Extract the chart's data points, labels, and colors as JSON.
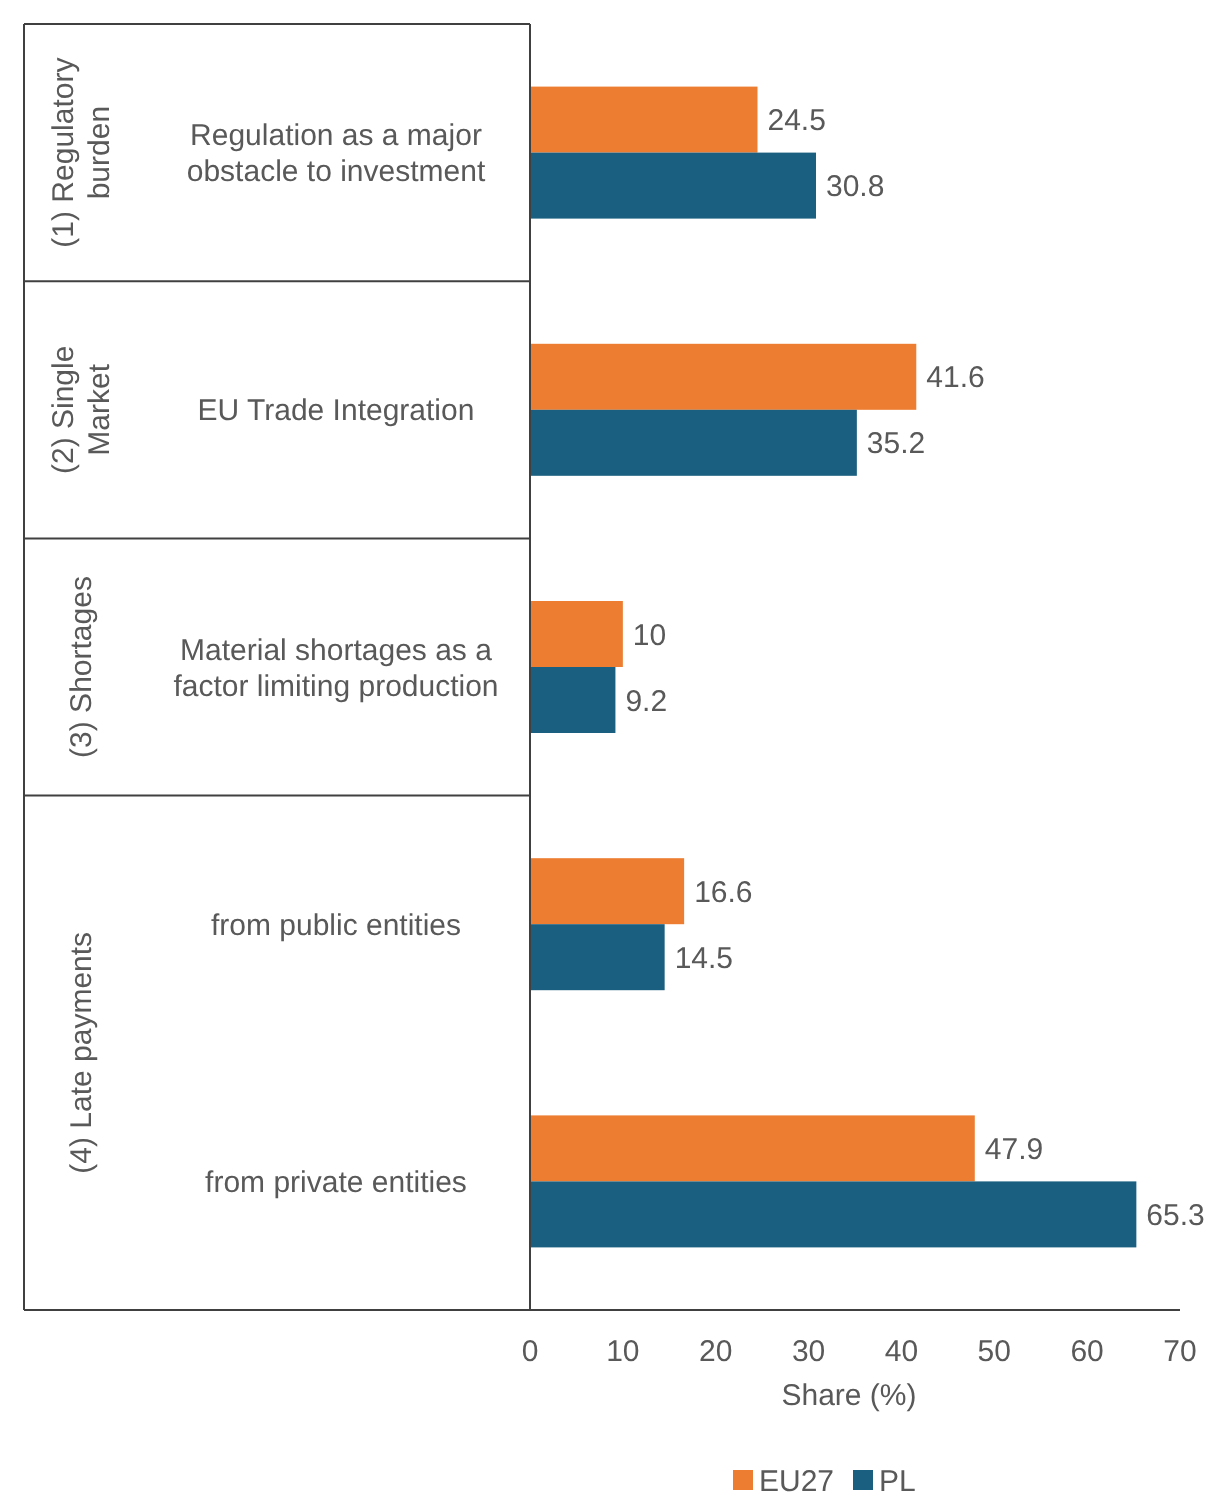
{
  "chart_data": {
    "type": "bar",
    "orientation": "horizontal",
    "categories": [
      "Regulation as a major obstacle to investment",
      "EU Trade Integration",
      "Material shortages as a factor limiting production",
      "from public entities",
      "from private entities"
    ],
    "series": [
      {
        "name": "EU27",
        "color": "#ed7d31",
        "values": [
          24.5,
          41.6,
          10,
          16.6,
          47.9
        ]
      },
      {
        "name": "PL",
        "color": "#1a5f7f",
        "values": [
          30.8,
          35.2,
          9.2,
          14.5,
          65.3
        ]
      }
    ],
    "xlabel": "Share (%)",
    "xlim": [
      0,
      70
    ],
    "xticks": [
      0,
      10,
      20,
      30,
      40,
      50,
      60,
      70
    ],
    "data_labels": true,
    "legend": "bottom",
    "grid": false,
    "annotations": [
      "(1) Regulatory burden",
      "(2) Single Market",
      "(3) Shortages",
      "(4) Late payments"
    ]
  }
}
